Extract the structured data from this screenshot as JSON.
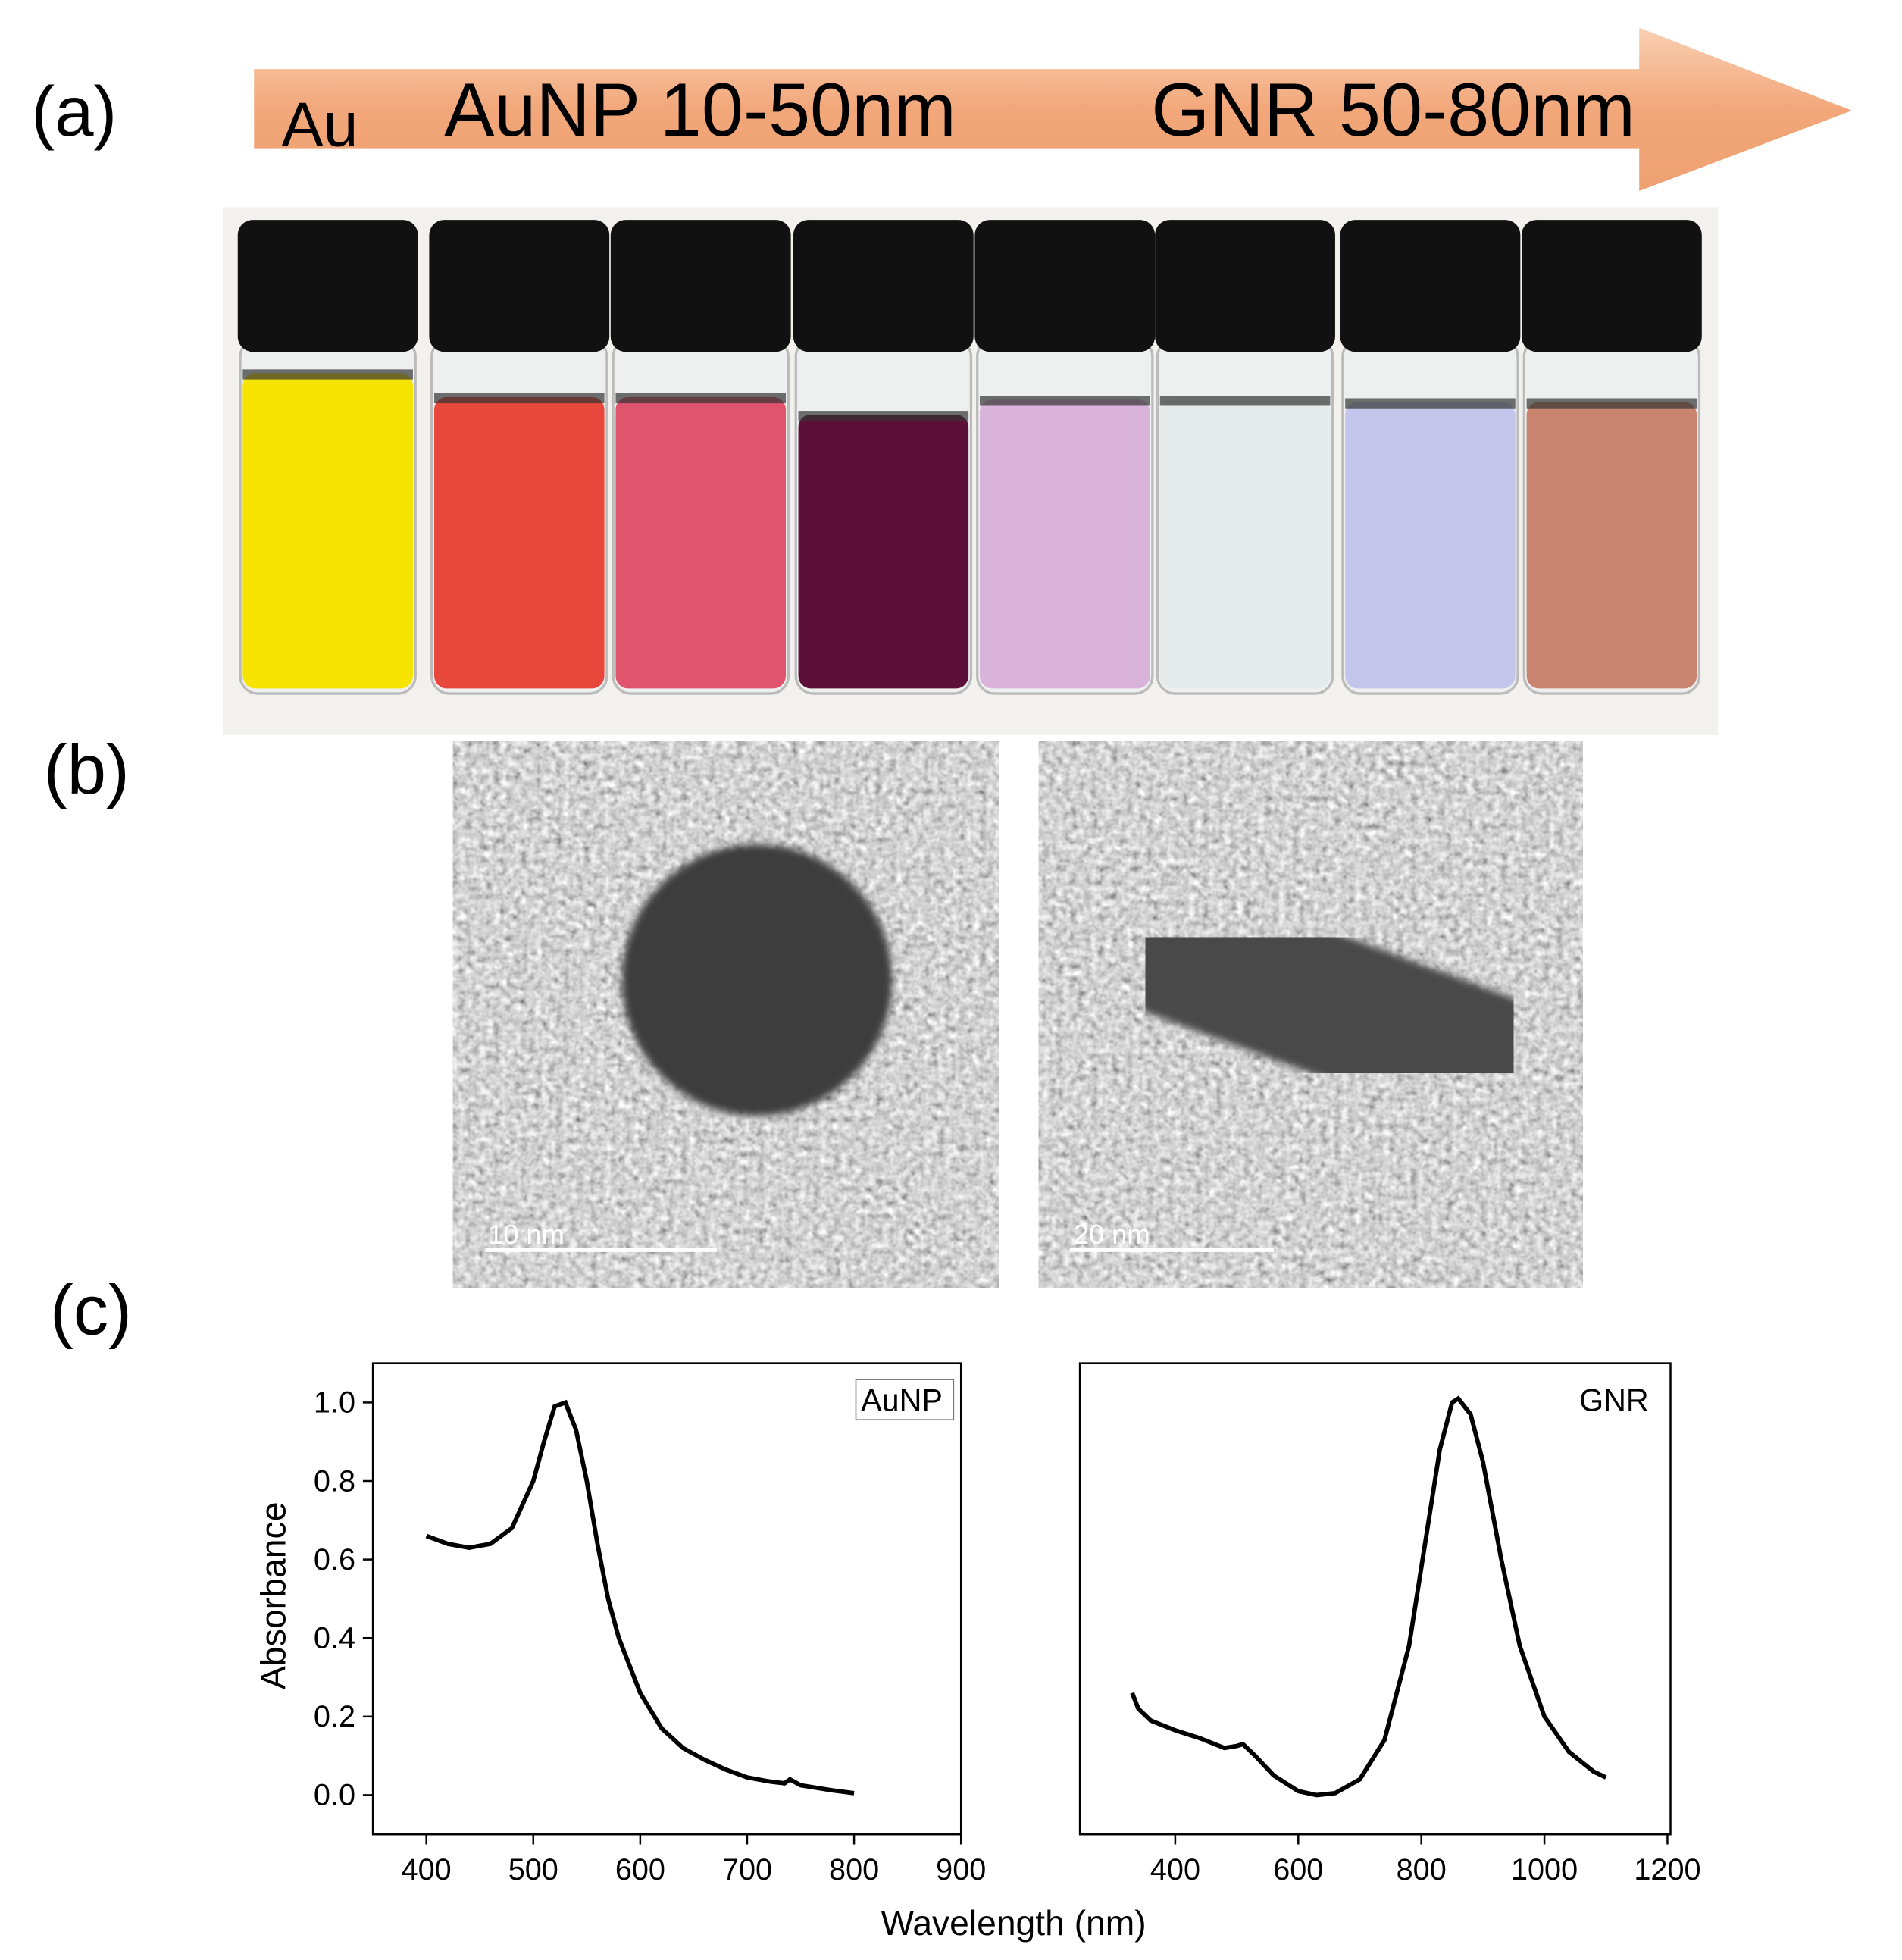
{
  "panel_labels": [
    "(a)",
    "(b)",
    "(c)"
  ],
  "arrow_labels": [
    "Au",
    "AuNP 10-50nm",
    "GNR 50-80nm"
  ],
  "scale_bars": [
    "10 nm",
    "20 nm"
  ],
  "xlabel": "Wavelength (nm)",
  "chart_data": [
    {
      "type": "line",
      "ylabel": "Absorbance",
      "annotation": "AuNP",
      "x": [
        400,
        420,
        440,
        460,
        480,
        500,
        510,
        520,
        530,
        540,
        550,
        560,
        570,
        580,
        600,
        620,
        640,
        660,
        680,
        700,
        720,
        735,
        740,
        750,
        780,
        800
      ],
      "series": [
        {
          "name": "AuNP",
          "color": "#000000",
          "values": [
            0.66,
            0.64,
            0.63,
            0.64,
            0.68,
            0.8,
            0.9,
            0.99,
            1.0,
            0.93,
            0.8,
            0.64,
            0.5,
            0.4,
            0.26,
            0.17,
            0.12,
            0.09,
            0.065,
            0.045,
            0.035,
            0.03,
            0.04,
            0.025,
            0.012,
            0.005
          ]
        }
      ],
      "xlim": [
        350,
        900
      ],
      "ylim": [
        -0.1,
        1.1
      ],
      "xticks": [
        400,
        500,
        600,
        700,
        800,
        900
      ],
      "yticks": [
        {
          "value": 0,
          "label": "0.0"
        },
        {
          "value": 0.2,
          "label": "0.2"
        },
        {
          "value": 0.4,
          "label": "0.4"
        },
        {
          "value": 0.6,
          "label": "0.6"
        },
        {
          "value": 0.8,
          "label": "0.8"
        },
        {
          "value": 1,
          "label": "1.0"
        }
      ]
    },
    {
      "type": "line",
      "annotation": "GNR",
      "x": [
        330,
        340,
        360,
        400,
        440,
        480,
        500,
        510,
        530,
        560,
        600,
        630,
        660,
        700,
        740,
        780,
        810,
        830,
        850,
        860,
        880,
        900,
        930,
        960,
        1000,
        1040,
        1080,
        1100
      ],
      "series": [
        {
          "name": "GNR",
          "color": "#000000",
          "values": [
            0.26,
            0.22,
            0.19,
            0.165,
            0.145,
            0.12,
            0.125,
            0.13,
            0.1,
            0.05,
            0.01,
            0,
            0.005,
            0.04,
            0.14,
            0.38,
            0.68,
            0.88,
            1.0,
            1.01,
            0.97,
            0.85,
            0.6,
            0.38,
            0.2,
            0.11,
            0.06,
            0.045
          ]
        }
      ],
      "xlim": [
        245,
        1205
      ],
      "ylim": [
        -0.1,
        1.1
      ],
      "xticks": [
        400,
        600,
        800,
        1000,
        1200
      ]
    }
  ]
}
